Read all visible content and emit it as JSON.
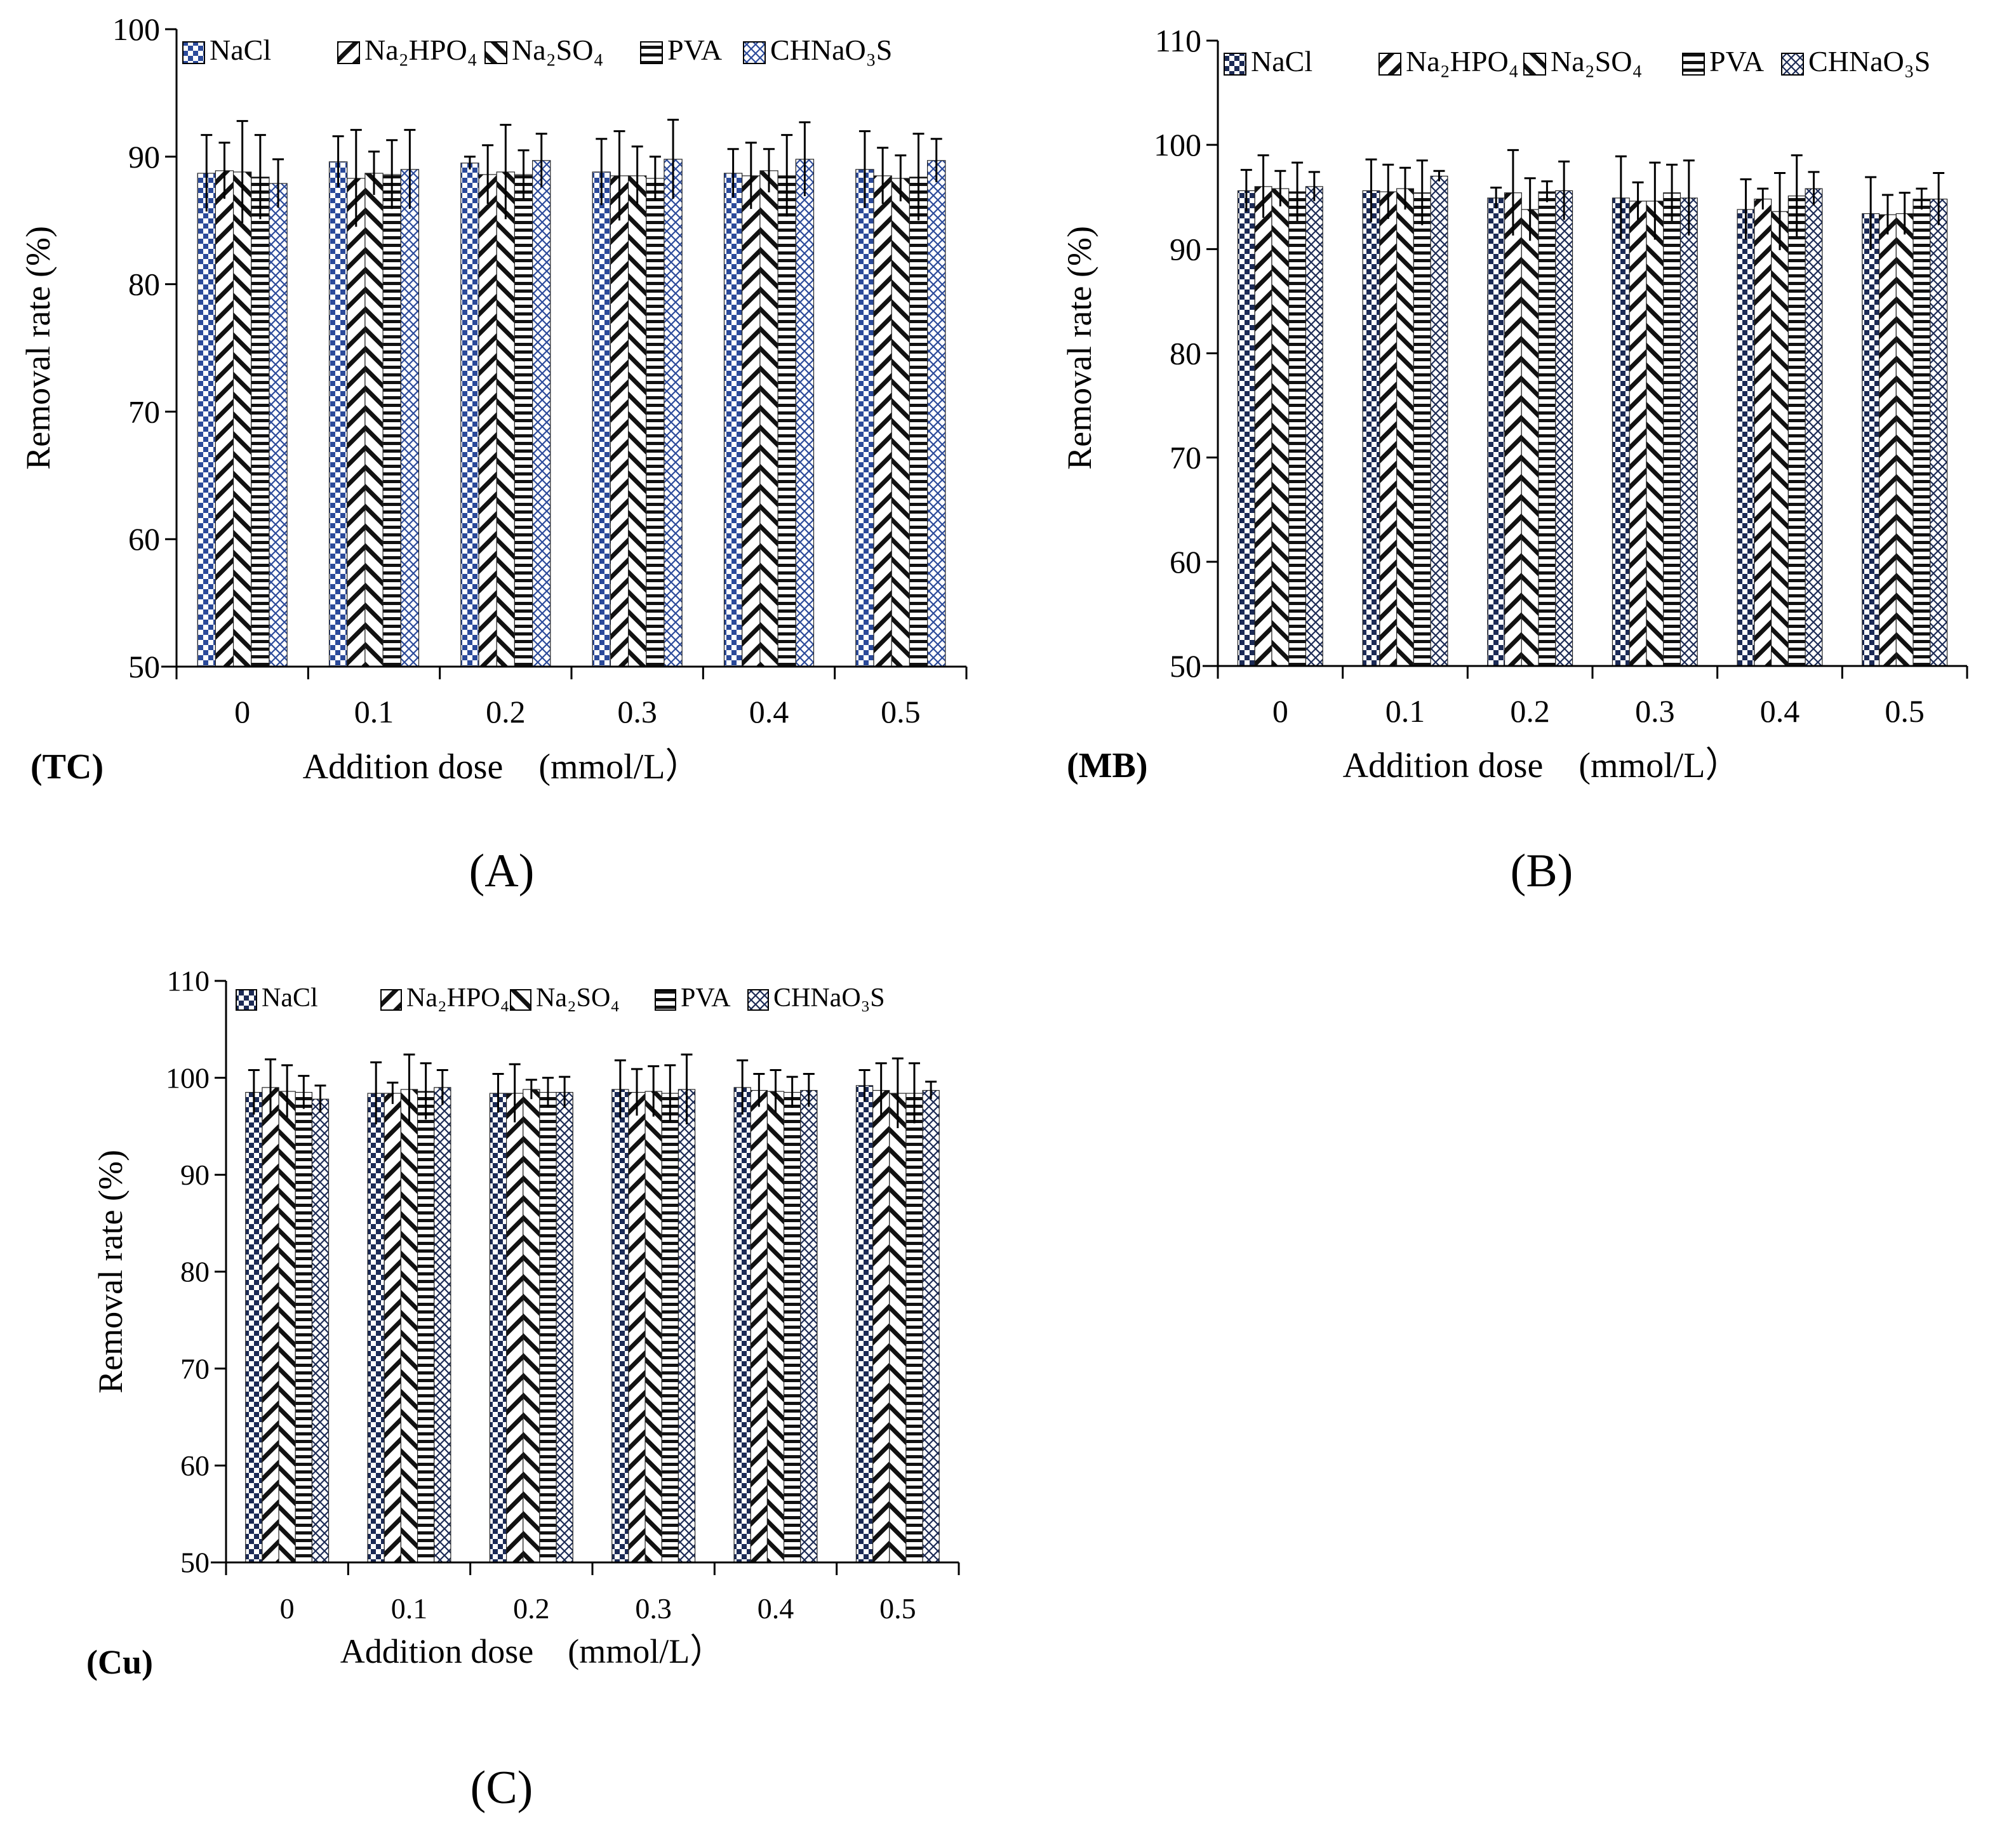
{
  "figure": {
    "colors": {
      "navy": "#1b2a55",
      "blue": "#2b4a9a",
      "axis": "#000000",
      "error": "#000000"
    }
  },
  "chart_data": [
    {
      "type": "bar",
      "panel_label": "(A)",
      "corner_label": "(TC)",
      "xlabel": "Addition dose　(mmol/L）",
      "ylabel": "Removal rate (%)",
      "ylim": [
        50,
        100
      ],
      "yticks": [
        50,
        60,
        70,
        80,
        90,
        100
      ],
      "categories": [
        "0",
        "0.1",
        "0.2",
        "0.3",
        "0.4",
        "0.5"
      ],
      "legend_placement": "top",
      "series": [
        {
          "name": "NaCl",
          "pattern": "checker-blue",
          "values": [
            88.7,
            89.6,
            89.5,
            88.8,
            88.7,
            89.0
          ],
          "errors": [
            3.0,
            2.0,
            0.5,
            2.6,
            1.9,
            3.0
          ]
        },
        {
          "name": "Na₂HPO₄",
          "pattern": "diag-back",
          "values": [
            88.9,
            88.3,
            88.6,
            88.5,
            88.5,
            88.5
          ],
          "errors": [
            2.2,
            3.8,
            2.3,
            3.5,
            2.6,
            2.2
          ]
        },
        {
          "name": "Na₂SO₄",
          "pattern": "diag-fwd",
          "values": [
            88.8,
            88.7,
            88.8,
            88.5,
            88.9,
            88.3
          ],
          "errors": [
            4.0,
            1.7,
            3.7,
            2.3,
            1.7,
            1.8
          ]
        },
        {
          "name": "PVA",
          "pattern": "hstripe",
          "values": [
            88.4,
            88.6,
            88.6,
            88.3,
            88.5,
            88.4
          ],
          "errors": [
            3.3,
            2.7,
            1.9,
            1.7,
            3.2,
            3.4
          ]
        },
        {
          "name": "CHNaO₃S",
          "pattern": "crosshatch-blue",
          "values": [
            87.9,
            89.0,
            89.7,
            89.8,
            89.8,
            89.7
          ],
          "errors": [
            1.9,
            3.1,
            2.1,
            3.1,
            2.9,
            1.7
          ]
        }
      ]
    },
    {
      "type": "bar",
      "panel_label": "(B)",
      "corner_label": "(MB)",
      "xlabel": "Addition dose　(mmol/L）",
      "ylabel": "Removal rate (%)",
      "ylim": [
        50,
        110
      ],
      "yticks": [
        50,
        60,
        70,
        80,
        90,
        100,
        110
      ],
      "categories": [
        "0",
        "0.1",
        "0.2",
        "0.3",
        "0.4",
        "0.5"
      ],
      "legend_placement": "top",
      "series": [
        {
          "name": "NaCl",
          "pattern": "checker-navy",
          "values": [
            95.6,
            95.6,
            94.9,
            94.9,
            93.8,
            93.4
          ],
          "errors": [
            2.0,
            3.0,
            1.0,
            4.0,
            2.9,
            3.5
          ]
        },
        {
          "name": "Na₂HPO₄",
          "pattern": "diag-back",
          "values": [
            96.0,
            95.5,
            95.4,
            94.6,
            94.8,
            93.3
          ],
          "errors": [
            3.0,
            2.6,
            4.1,
            1.8,
            1.0,
            1.9
          ]
        },
        {
          "name": "Na₂SO₄",
          "pattern": "diag-fwd",
          "values": [
            95.8,
            95.8,
            93.8,
            94.6,
            93.6,
            93.4
          ],
          "errors": [
            1.7,
            2.0,
            3.0,
            3.7,
            3.7,
            2.0
          ]
        },
        {
          "name": "PVA",
          "pattern": "hstripe",
          "values": [
            95.5,
            95.4,
            95.5,
            95.4,
            95.1,
            94.8
          ],
          "errors": [
            2.8,
            3.1,
            1.0,
            2.7,
            3.9,
            1.0
          ]
        },
        {
          "name": "CHNaO₃S",
          "pattern": "crosshatch-navy",
          "values": [
            96.0,
            97.0,
            95.6,
            94.9,
            95.8,
            94.8
          ],
          "errors": [
            1.4,
            0.5,
            2.8,
            3.6,
            1.6,
            2.5
          ]
        }
      ]
    },
    {
      "type": "bar",
      "panel_label": "(C)",
      "corner_label": "(Cu)",
      "xlabel": "Addition dose　(mmol/L）",
      "ylabel": "Removal rate (%)",
      "ylim": [
        50,
        110
      ],
      "yticks": [
        50,
        60,
        70,
        80,
        90,
        100,
        110
      ],
      "categories": [
        "0",
        "0.1",
        "0.2",
        "0.3",
        "0.4",
        "0.5"
      ],
      "legend_placement": "top",
      "series": [
        {
          "name": "NaCl",
          "pattern": "checker-navy",
          "values": [
            98.5,
            98.4,
            98.4,
            98.8,
            99.0,
            99.2
          ],
          "errors": [
            2.3,
            3.2,
            2.0,
            3.0,
            2.8,
            1.6
          ]
        },
        {
          "name": "Na₂HPO₄",
          "pattern": "diag-back",
          "values": [
            99.0,
            98.4,
            98.4,
            98.5,
            98.7,
            98.7
          ],
          "errors": [
            2.9,
            1.1,
            3.0,
            2.4,
            1.7,
            2.8
          ]
        },
        {
          "name": "Na₂SO₄",
          "pattern": "diag-fwd",
          "values": [
            98.6,
            98.8,
            98.8,
            98.6,
            98.6,
            98.4
          ],
          "errors": [
            2.7,
            3.6,
            1.0,
            2.6,
            2.2,
            3.6
          ]
        },
        {
          "name": "PVA",
          "pattern": "hstripe",
          "values": [
            98.5,
            98.6,
            98.5,
            98.4,
            98.5,
            98.4
          ],
          "errors": [
            1.7,
            2.9,
            1.5,
            2.9,
            1.6,
            3.1
          ]
        },
        {
          "name": "CHNaO₃S",
          "pattern": "crosshatch-navy",
          "values": [
            97.8,
            99.0,
            98.5,
            98.8,
            98.7,
            98.7
          ],
          "errors": [
            1.4,
            1.8,
            1.6,
            3.6,
            1.7,
            0.9
          ]
        }
      ]
    }
  ]
}
